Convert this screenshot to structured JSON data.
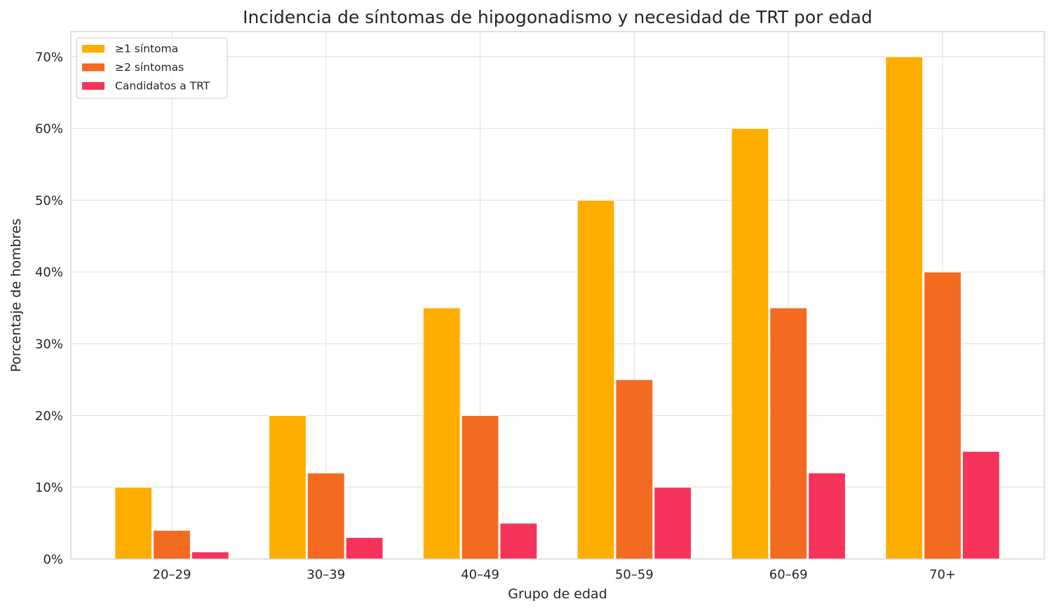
{
  "chart_data": {
    "type": "bar",
    "title": "Incidencia de síntomas de hipogonadismo y necesidad de TRT por edad",
    "xlabel": "Grupo de edad",
    "ylabel": "Porcentaje de hombres",
    "categories": [
      "20–29",
      "30–39",
      "40–49",
      "50–59",
      "60–69",
      "70+"
    ],
    "series": [
      {
        "name": "≥1 síntoma",
        "color": "#FFAE00",
        "values": [
          10,
          20,
          35,
          50,
          60,
          70
        ]
      },
      {
        "name": "≥2 síntomas",
        "color": "#F26B21",
        "values": [
          4,
          12,
          20,
          25,
          35,
          40
        ]
      },
      {
        "name": "Candidatos a TRT",
        "color": "#F6335A",
        "values": [
          1,
          3,
          5,
          10,
          12,
          15
        ]
      }
    ],
    "ylim": [
      0,
      73.5
    ],
    "yticks": [
      0,
      10,
      20,
      30,
      40,
      50,
      60,
      70
    ],
    "ytick_labels": [
      "0%",
      "10%",
      "20%",
      "30%",
      "40%",
      "50%",
      "60%",
      "70%"
    ],
    "grid": true,
    "legend_position": "top-left"
  }
}
